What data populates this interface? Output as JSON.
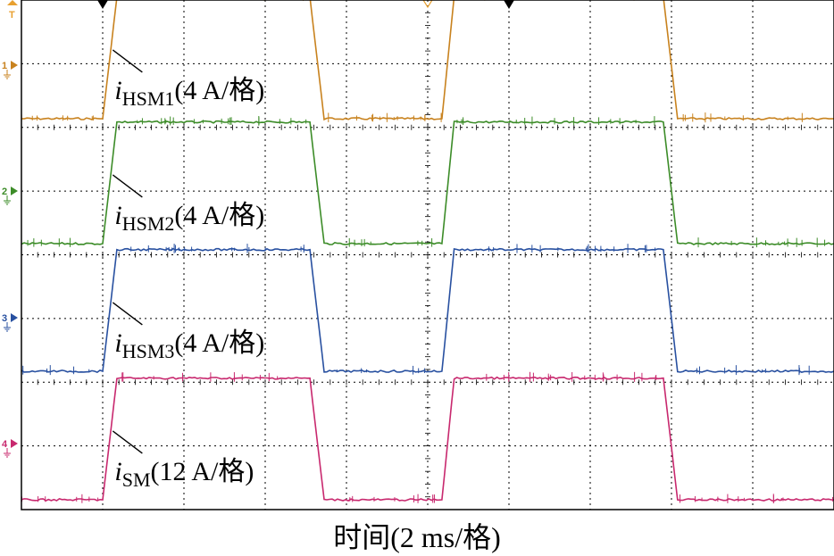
{
  "chart_data": {
    "type": "line",
    "xlabel": "时间(2 ms/格)",
    "x_unit": "ms",
    "x_per_div_ms": 2,
    "xlim_ms": [
      0,
      20
    ],
    "grid": true,
    "series": [
      {
        "id": "ch1",
        "name": "iHSM1(4 A/格)",
        "name_parts": {
          "italic": "i",
          "sub": "HSM1",
          "rest": "(4 A/格)"
        },
        "marker": "1",
        "color": "#C8821E",
        "low_div": 0,
        "high_div": 2.3,
        "x_ms": [
          0,
          2.0,
          2.35,
          7.1,
          7.45,
          9.9,
          10.35,
          10.65,
          15.8,
          16.15,
          20
        ],
        "y_div": [
          0,
          0,
          2.3,
          2.3,
          0,
          0,
          0,
          2.3,
          2.3,
          0,
          0
        ]
      },
      {
        "id": "ch2",
        "name": "iHSM2(4 A/格)",
        "name_parts": {
          "italic": "i",
          "sub": "HSM2",
          "rest": "(4 A/格)"
        },
        "marker": "2",
        "color": "#3C8C28",
        "low_div": 0,
        "high_div": 2.3,
        "x_ms": [
          0,
          2.0,
          2.35,
          7.1,
          7.45,
          9.9,
          10.35,
          10.65,
          15.8,
          16.15,
          20
        ],
        "y_div": [
          0,
          0,
          2.3,
          2.3,
          0,
          0,
          0,
          2.3,
          2.3,
          0,
          0
        ]
      },
      {
        "id": "ch3",
        "name": "iHSM3(4 A/格)",
        "name_parts": {
          "italic": "i",
          "sub": "HSM3",
          "rest": "(4 A/格)"
        },
        "marker": "3",
        "color": "#2850A0",
        "low_div": 0,
        "high_div": 2.3,
        "x_ms": [
          0,
          2.0,
          2.35,
          7.1,
          7.45,
          9.9,
          10.35,
          10.65,
          15.8,
          16.15,
          20
        ],
        "y_div": [
          0,
          0,
          2.3,
          2.3,
          0,
          0,
          0,
          2.3,
          2.3,
          0,
          0
        ]
      },
      {
        "id": "ch4",
        "name": "iSM(12 A/格)",
        "name_parts": {
          "italic": "i",
          "sub": "SM",
          "rest": "(12 A/格)"
        },
        "marker": "4",
        "color": "#C8286E",
        "low_div": 0,
        "high_div": 2.3,
        "x_ms": [
          0,
          2.0,
          2.35,
          7.1,
          7.45,
          9.9,
          10.35,
          10.65,
          15.8,
          16.15,
          20
        ],
        "y_div": [
          0,
          0,
          2.3,
          2.3,
          0,
          0,
          0,
          2.3,
          2.3,
          0,
          0
        ]
      }
    ],
    "trigger_markers_ms": [
      2.0,
      12.0
    ],
    "trigger_level_marker": "T"
  }
}
